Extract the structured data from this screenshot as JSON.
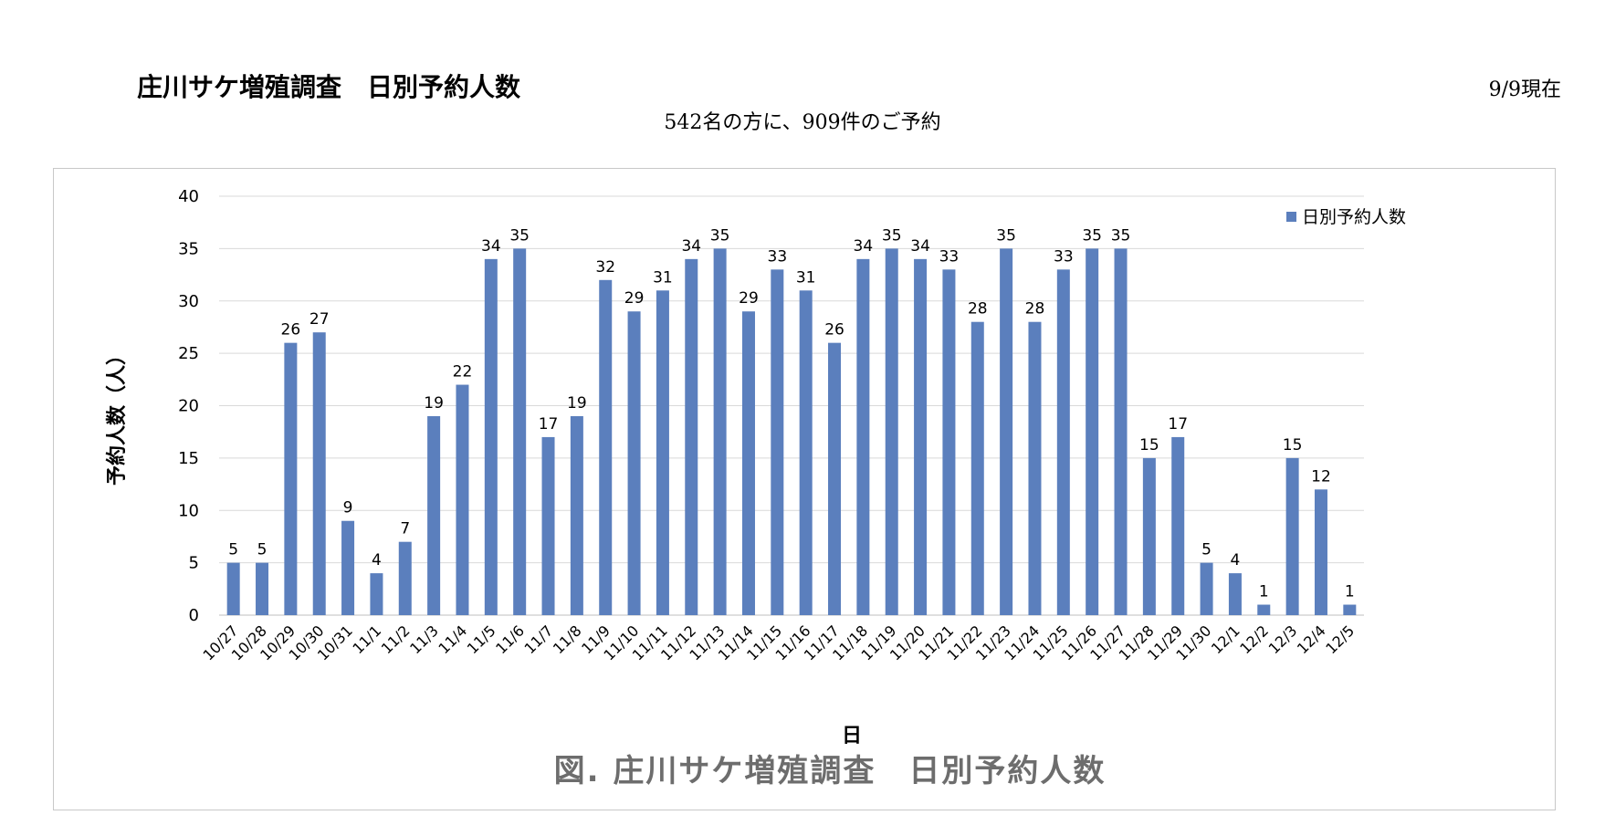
{
  "header": {
    "title": "庄川サケ増殖調査　日別予約人数",
    "as_of": "9/9現在",
    "summary": "542名の方に、909件のご予約"
  },
  "chart_data": {
    "type": "bar",
    "title": "",
    "caption": "図. 庄川サケ増殖調査　日別予約人数",
    "xlabel": "日",
    "ylabel": "予約人数（人）",
    "ylim": [
      0,
      40
    ],
    "yticks": [
      0,
      5,
      10,
      15,
      20,
      25,
      30,
      35,
      40
    ],
    "grid": true,
    "legend_position": "top-right",
    "bar_color": "#5b7fbd",
    "categories": [
      "10/27",
      "10/28",
      "10/29",
      "10/30",
      "10/31",
      "11/1",
      "11/2",
      "11/3",
      "11/4",
      "11/5",
      "11/6",
      "11/7",
      "11/8",
      "11/9",
      "11/10",
      "11/11",
      "11/12",
      "11/13",
      "11/14",
      "11/15",
      "11/16",
      "11/17",
      "11/18",
      "11/19",
      "11/20",
      "11/21",
      "11/22",
      "11/23",
      "11/24",
      "11/25",
      "11/26",
      "11/27",
      "11/28",
      "11/29",
      "11/30",
      "12/1",
      "12/2",
      "12/3",
      "12/4",
      "12/5"
    ],
    "series": [
      {
        "name": "日別予約人数",
        "values": [
          5,
          5,
          26,
          27,
          9,
          4,
          7,
          19,
          22,
          34,
          35,
          17,
          19,
          32,
          29,
          31,
          34,
          35,
          29,
          33,
          31,
          26,
          34,
          35,
          34,
          33,
          28,
          35,
          28,
          33,
          35,
          35,
          15,
          17,
          5,
          4,
          1,
          15,
          12,
          1
        ]
      }
    ]
  }
}
